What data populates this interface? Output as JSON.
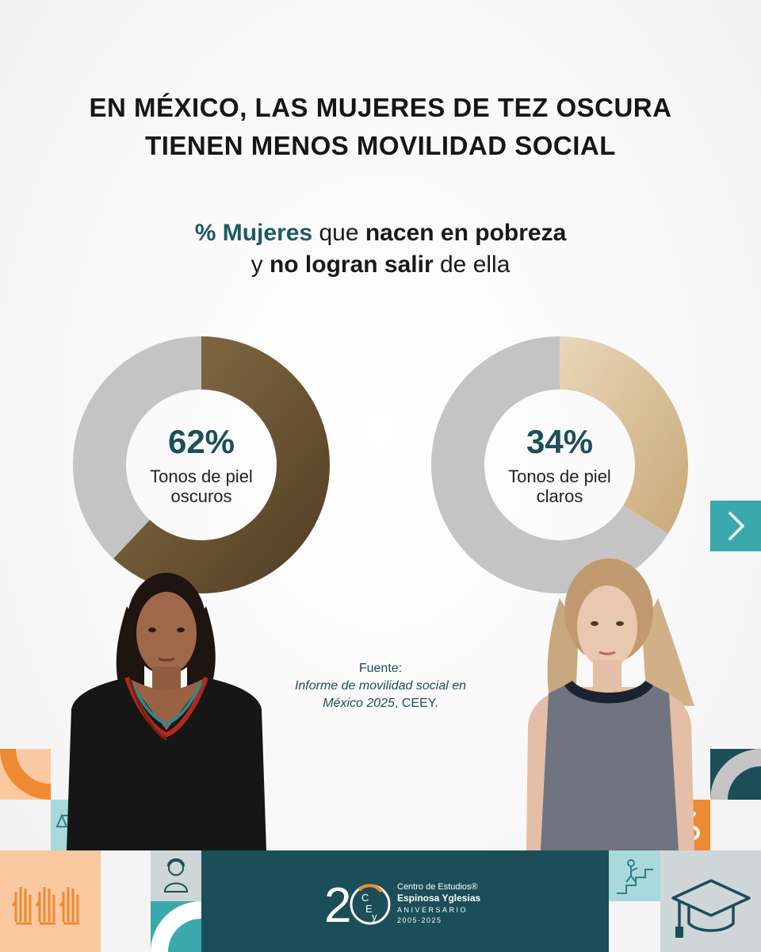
{
  "title": {
    "line1": "EN MÉXICO, LAS MUJERES DE TEZ OSCURA",
    "line2": "TIENEN MENOS MOVILIDAD SOCIAL"
  },
  "subtitle": {
    "part1": "% Mujeres",
    "part2": " que ",
    "part3": "nacen en pobreza",
    "part4": "y ",
    "part5": "no logran salir",
    "part6": " de ella"
  },
  "chart_data": [
    {
      "type": "pie",
      "values": [
        62,
        38
      ],
      "value_label": "62%",
      "label": "Tonos de piel oscuros",
      "colors": [
        "#6b5334",
        "#c4c4c4"
      ]
    },
    {
      "type": "pie",
      "values": [
        34,
        66
      ],
      "value_label": "34%",
      "label": "Tonos de piel claros",
      "colors": [
        "#d6bc96",
        "#c4c4c4"
      ]
    }
  ],
  "source": {
    "label": "Fuente:",
    "line1": "Informe de movilidad social en",
    "line2_italic": "México 2025",
    "line2_rest": ", CEEY."
  },
  "footer": {
    "logo_org_line1": "Centro de Estudios®",
    "logo_org_line2": "Espinosa Yglesias",
    "logo_anniv": "ANIVERSARIO",
    "logo_years": "2005-2025"
  },
  "icons": [
    "chevron-right-icon",
    "scales-icon",
    "arrow-down-icon",
    "raised-hands-icon",
    "woman-icon",
    "percent-icon",
    "climbing-steps-icon",
    "graduation-cap-icon"
  ],
  "colors": {
    "teal_dark": "#1b4e58",
    "teal": "#3aa9ad",
    "teal_light": "#a9d9db",
    "orange": "#ee8a33",
    "peach": "#fbc9a0",
    "grey": "#c4c4c4",
    "dark_tone": "#6b5334",
    "light_tone": "#d6bc96"
  }
}
